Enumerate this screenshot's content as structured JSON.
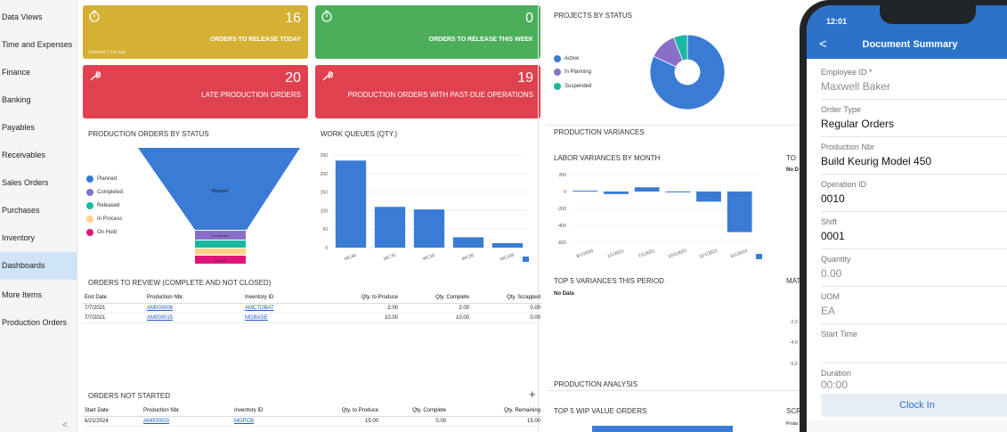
{
  "sidebar": {
    "items": [
      {
        "label": "Data Views"
      },
      {
        "label": "Time and Expenses"
      },
      {
        "label": "Finance"
      },
      {
        "label": "Banking"
      },
      {
        "label": "Payables"
      },
      {
        "label": "Receivables"
      },
      {
        "label": "Sales Orders"
      },
      {
        "label": "Purchases"
      },
      {
        "label": "Inventory"
      },
      {
        "label": "Dashboards"
      },
      {
        "label": "More Items"
      },
      {
        "label": "Production Orders"
      }
    ],
    "active": "Dashboards",
    "collapse_glyph": "<"
  },
  "tiles": [
    {
      "value": "16",
      "label": "ORDERS TO RELEASE TODAY",
      "updated": "Updated 2 min ago",
      "color": "#d4b033",
      "icon": "stopwatch-icon"
    },
    {
      "value": "0",
      "label": "ORDERS TO RELEASE THIS WEEK",
      "color": "#4cae5a",
      "icon": "stopwatch-icon"
    },
    {
      "value": "20",
      "label": "LATE PRODUCTION ORDERS",
      "color": "#e0414f",
      "icon": "wrench-icon"
    },
    {
      "value": "19",
      "label": "PRODUCTION ORDERS WITH PAST-DUE OPERATIONS",
      "color": "#e0414f",
      "icon": "wrench-icon"
    }
  ],
  "projects": {
    "title": "PROJECTS BY STATUS",
    "legend": [
      "Active",
      "In Planning",
      "Suspended"
    ]
  },
  "funnel": {
    "title": "PRODUCTION ORDERS BY STATUS",
    "legend": [
      "Planned",
      "Completed",
      "Released",
      "In Process",
      "On Hold"
    ],
    "segment_labels": [
      "Planned",
      "Completed",
      "",
      "",
      "On Hold"
    ]
  },
  "work_queues": {
    "title": "WORK QUEUES (QTY.)"
  },
  "production_variances": {
    "title": "PRODUCTION VARIANCES"
  },
  "labor_variances": {
    "title": "LABOR VARIANCES BY MONTH"
  },
  "top_variances": {
    "title": "TOP 5 VARIANCES THIS PERIOD",
    "empty": "No Data"
  },
  "clipped": {
    "to": "TO",
    "nod": "No D",
    "mat": "MAT",
    "scr": "SCR",
    "prod": "Produ",
    "neg2": "-2,0",
    "neg4": "-4,0",
    "neg6": "-6,0"
  },
  "orders_review": {
    "title": "ORDERS TO REVIEW (COMPLETE AND NOT CLOSED)",
    "headers": [
      "End Date",
      "Production Nbr.",
      "Inventory ID",
      "Qty. to Produce",
      "Qty. Complete",
      "Qty. Scrapped"
    ],
    "rows": [
      [
        "7/7/2021",
        "AM000006",
        "AMCTOBAT",
        "2.00",
        "2.00",
        "0.00"
      ],
      [
        "7/7/2021",
        "AM000015",
        "MGBASE",
        "10.00",
        "10.00",
        "0.00"
      ]
    ]
  },
  "orders_not_started": {
    "title": "ORDERS NOT STARTED",
    "add_glyph": "+",
    "headers": [
      "Start Date",
      "Production Nbr.",
      "Inventory ID",
      "Qty. to Produce",
      "Qty. Complete",
      "Qty. Remaining"
    ],
    "rows": [
      [
        "6/21/2024",
        "AM000003",
        "MGPCB",
        "15.00",
        "0.00",
        "15.00"
      ]
    ]
  },
  "production_analysis": {
    "title": "PRODUCTION ANALYSIS"
  },
  "top_wip": {
    "title": "TOP 5 WIP VALUE ORDERS"
  },
  "chart_data": [
    {
      "type": "pie",
      "title": "PROJECTS BY STATUS",
      "categories": [
        "Active",
        "In Planning",
        "Suspended"
      ],
      "values": [
        82,
        12,
        6
      ],
      "colors": [
        "#3a7bd5",
        "#8a6fc9",
        "#1ab7a1"
      ]
    },
    {
      "type": "bar",
      "title": "WORK QUEUES (QTY.)",
      "categories": [
        "WC40",
        "WC70",
        "WC10",
        "WC20",
        "WC100"
      ],
      "values": [
        235,
        110,
        103,
        28,
        12
      ],
      "ylim": [
        0,
        250
      ],
      "yticks": [
        0,
        50,
        100,
        150,
        200,
        250
      ],
      "color": "#3a7bd5"
    },
    {
      "type": "bar",
      "title": "LABOR VARIANCES BY MONTH",
      "categories": [
        "8/1/2020",
        "1/1/2021",
        "7/1/2021",
        "10/1/2021",
        "11/1/2021",
        "6/1/2024"
      ],
      "values": [
        10,
        -30,
        50,
        0,
        -120,
        -480
      ],
      "ylim": [
        -600,
        200
      ],
      "yticks": [
        200,
        0,
        -200,
        -400,
        -600
      ],
      "color": "#3a7bd5"
    },
    {
      "type": "funnel",
      "title": "PRODUCTION ORDERS BY STATUS",
      "categories": [
        "Planned",
        "Completed",
        "Released",
        "In Process",
        "On Hold"
      ],
      "values": [
        40,
        2,
        2,
        1,
        1
      ],
      "colors": [
        "#3a7bd5",
        "#8a6fc9",
        "#1ab7a1",
        "#fdd38a",
        "#e0157a"
      ]
    }
  ],
  "phone": {
    "time": "12:01",
    "title": "Document Summary",
    "back": "<",
    "fields": [
      {
        "label": "Employee ID *",
        "value": "Maxwell Baker",
        "muted": true
      },
      {
        "label": "Order Type",
        "value": "Regular Orders",
        "muted": false
      },
      {
        "label": "Production Nbr",
        "value": "Build Keurig Model 450",
        "muted": false
      },
      {
        "label": "Operation ID",
        "value": "0010",
        "muted": false
      },
      {
        "label": "Shift",
        "value": "0001",
        "muted": false
      },
      {
        "label": "Quantity",
        "value": "0.00",
        "muted": true
      },
      {
        "label": "UOM",
        "value": "EA",
        "muted": true
      },
      {
        "label": "Start Time",
        "value": "",
        "muted": true
      },
      {
        "label": "Duration",
        "value": "00:00",
        "muted": true
      }
    ],
    "button": "Clock In"
  }
}
